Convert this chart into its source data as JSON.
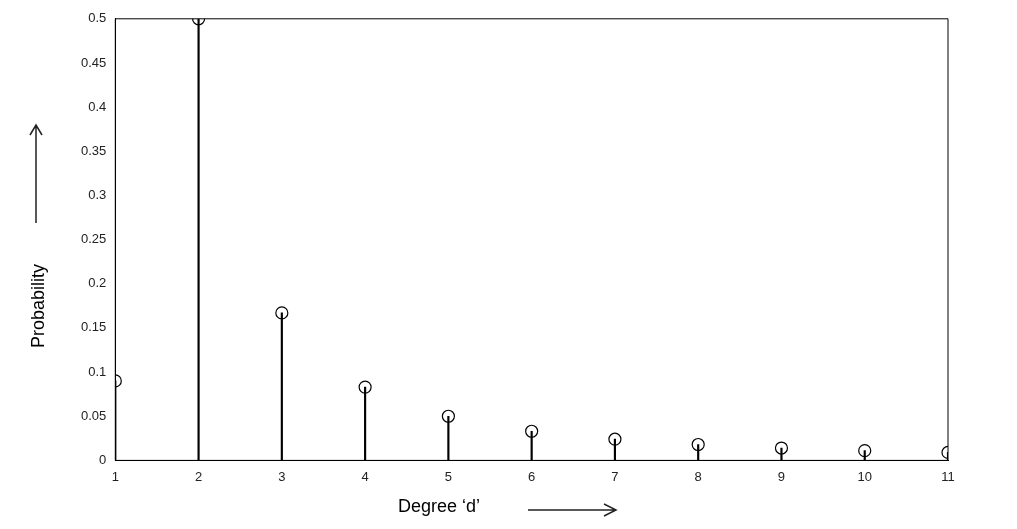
{
  "chart_data": {
    "type": "lollipop",
    "xlabel": "Degree ‘d’",
    "ylabel": "Probability",
    "x": [
      1,
      2,
      3,
      4,
      5,
      6,
      7,
      8,
      9,
      10,
      11
    ],
    "values": [
      0.09,
      0.5,
      0.167,
      0.083,
      0.05,
      0.033,
      0.024,
      0.018,
      0.014,
      0.011,
      0.009
    ],
    "color": "#000000",
    "marker": "circle",
    "grid": false,
    "xlim": [
      1,
      11
    ],
    "xticks": [
      1,
      2,
      3,
      4,
      5,
      6,
      7,
      8,
      9,
      10,
      11
    ],
    "ylim": [
      0,
      0.5
    ],
    "yticks": [
      0,
      0.05,
      0.1,
      0.15,
      0.2,
      0.25,
      0.3,
      0.35,
      0.4,
      0.45,
      0.5
    ]
  }
}
